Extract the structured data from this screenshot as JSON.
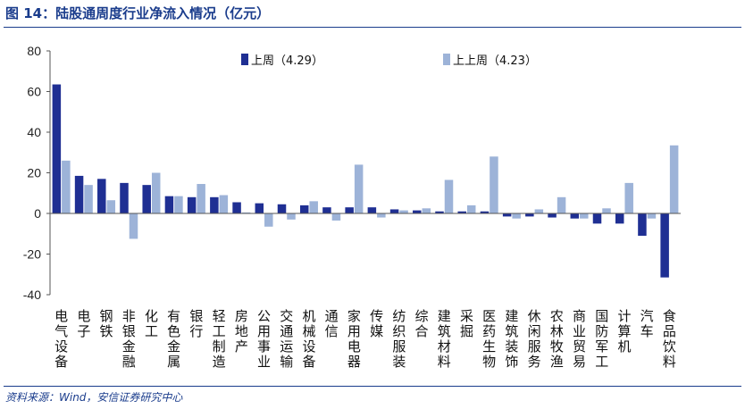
{
  "header": {
    "title": "图 14：陆股通周度行业净流入情况（亿元）"
  },
  "footer": {
    "source": "资料来源：Wind，安信证券研究中心"
  },
  "colors": {
    "series1": "#1f2f93",
    "series2": "#9db3d8",
    "accent": "#1a3c8c"
  },
  "chart_data": {
    "type": "bar",
    "title": "陆股通周度行业净流入情况（亿元）",
    "xlabel": "",
    "ylabel": "",
    "ylim": [
      -40,
      80
    ],
    "yticks": [
      -40,
      -20,
      0,
      20,
      40,
      60,
      80
    ],
    "legend_position": "top",
    "categories": [
      "电气设备",
      "电子",
      "钢铁",
      "非银金融",
      "化工",
      "有色金属",
      "银行",
      "轻工制造",
      "房地产",
      "公用事业",
      "交通运输",
      "机械设备",
      "通信",
      "家用电器",
      "传媒",
      "纺织服装",
      "综合",
      "建筑材料",
      "采掘",
      "医药生物",
      "建筑装饰",
      "休闲服务",
      "农林牧渔",
      "商业贸易",
      "国防军工",
      "计算机",
      "汽车",
      "食品饮料"
    ],
    "series": [
      {
        "name": "上周（4.29）",
        "values": [
          63.5,
          18.5,
          17,
          15,
          14,
          8.5,
          8,
          8,
          5.5,
          5,
          4.5,
          4,
          3,
          3,
          3,
          2,
          1.5,
          1,
          1,
          1,
          -1.5,
          -1.5,
          -2,
          -2.5,
          -5,
          -5,
          -11,
          -31.5
        ]
      },
      {
        "name": "上上周（4.23）",
        "values": [
          26,
          14,
          6.5,
          -12.5,
          20,
          8.5,
          14.5,
          9,
          0.5,
          -6.5,
          -3,
          6,
          -3.5,
          24,
          -2,
          1.5,
          2.5,
          16.5,
          4,
          28,
          -2.5,
          2,
          8,
          -2.5,
          2.5,
          15,
          -2.5,
          33.5
        ]
      }
    ]
  }
}
